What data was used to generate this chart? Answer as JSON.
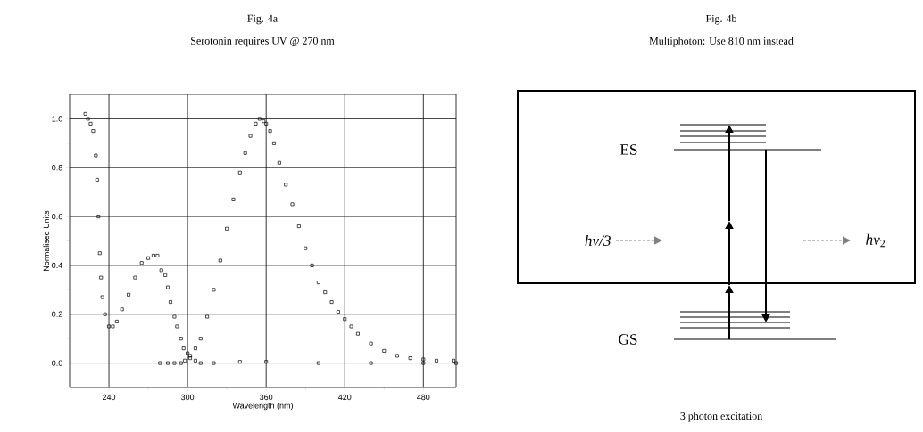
{
  "chart_data": [
    {
      "type": "scatter",
      "title": "Fig. 4a",
      "subtitle": "Serotonin requires UV @ 270 nm",
      "xlabel": "Wavelength (nm)",
      "ylabel": "Normalised Units",
      "marker": "square",
      "grid": true,
      "xlim": [
        210,
        505
      ],
      "ylim": [
        -0.1,
        1.1
      ],
      "xticks": [
        240,
        300,
        360,
        420,
        480
      ],
      "yticks": [
        {
          "value": 0,
          "label": "0.0"
        },
        0.2,
        0.4,
        0.6,
        0.8,
        {
          "value": 1,
          "label": "1.0"
        }
      ],
      "series": [
        {
          "color": "#000000",
          "x": [
            222,
            224,
            226,
            228,
            230,
            231,
            232,
            233,
            234,
            235,
            237,
            240,
            243,
            246,
            250,
            255,
            260,
            265,
            270,
            274,
            277,
            280,
            283,
            285,
            287,
            290,
            292,
            295,
            297,
            300,
            302,
            306,
            310,
            320,
            340,
            360,
            400,
            440,
            480,
            505
          ],
          "values": [
            1.02,
            1.0,
            0.98,
            0.95,
            0.85,
            0.75,
            0.6,
            0.45,
            0.35,
            0.27,
            0.2,
            0.15,
            0.15,
            0.17,
            0.22,
            0.28,
            0.35,
            0.41,
            0.43,
            0.44,
            0.44,
            0.38,
            0.36,
            0.31,
            0.25,
            0.19,
            0.15,
            0.1,
            0.06,
            0.04,
            0.02,
            0.01,
            0.0,
            0.0,
            0.005,
            0.005,
            0.0,
            0.0,
            0.0,
            0.0
          ]
        },
        {
          "color": "#000000",
          "x": [
            279,
            285,
            290,
            295,
            298,
            302,
            306,
            310,
            315,
            320,
            325,
            330,
            335,
            340,
            344,
            348,
            352,
            355,
            358,
            360,
            363,
            366,
            370,
            375,
            380,
            385,
            390,
            395,
            400,
            405,
            410,
            415,
            420,
            425,
            430,
            440,
            450,
            460,
            470,
            480,
            490,
            503
          ],
          "values": [
            0.0,
            0.0,
            0.0,
            0.0,
            0.01,
            0.03,
            0.06,
            0.1,
            0.19,
            0.3,
            0.42,
            0.55,
            0.67,
            0.78,
            0.86,
            0.93,
            0.98,
            1.0,
            0.99,
            0.98,
            0.95,
            0.9,
            0.82,
            0.73,
            0.65,
            0.56,
            0.47,
            0.4,
            0.33,
            0.29,
            0.25,
            0.21,
            0.18,
            0.15,
            0.12,
            0.08,
            0.05,
            0.03,
            0.02,
            0.015,
            0.01,
            0.01
          ]
        }
      ]
    },
    {
      "type": "other",
      "title": "Fig. 4b",
      "subtitle": "Multiphoton: Use 810 nm instead",
      "annotations": [
        "ES",
        "GS",
        "*hν/3*",
        "*hν*$_{2}$",
        "3 photon excitation"
      ]
    }
  ]
}
